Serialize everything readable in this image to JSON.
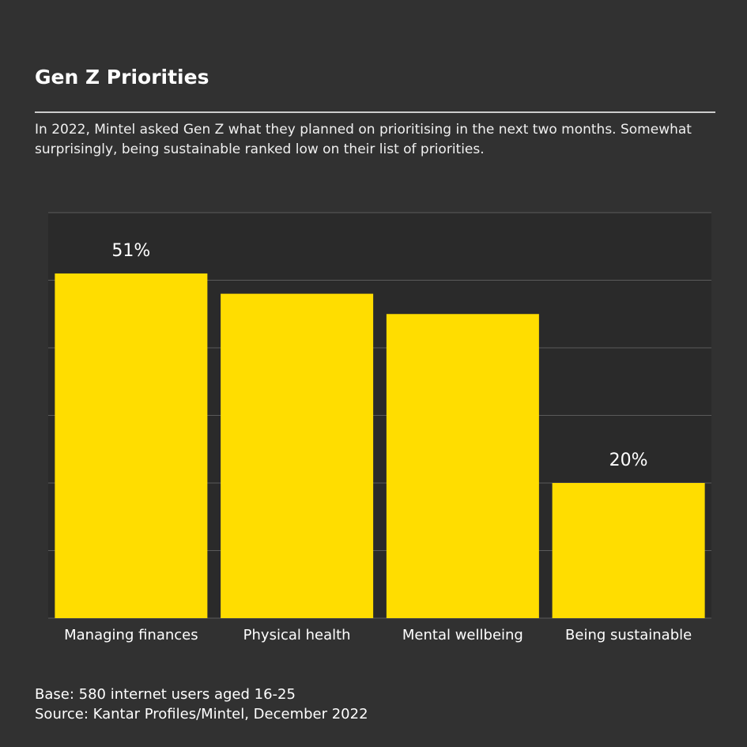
{
  "chart_data": {
    "type": "bar",
    "title": "Gen Z Priorities",
    "subtitle": "In 2022, Mintel asked Gen Z what they planned on prioritising in the next two months. Somewhat surprisingly, being sustainable ranked low on their list of priorities.",
    "categories": [
      "Managing finances",
      "Physical health",
      "Mental wellbeing",
      "Being sustainable"
    ],
    "values": [
      51,
      48,
      45,
      20
    ],
    "value_labels": [
      "51%",
      null,
      null,
      "20%"
    ],
    "color": "#ffdd00",
    "ylim": [
      0,
      60
    ],
    "yticks": [
      0,
      10,
      20,
      30,
      40,
      50,
      60
    ],
    "grid": true,
    "notes": [
      "Base: 580 internet users aged 16-25",
      "Source: Kantar Profiles/Mintel, December 2022"
    ]
  }
}
